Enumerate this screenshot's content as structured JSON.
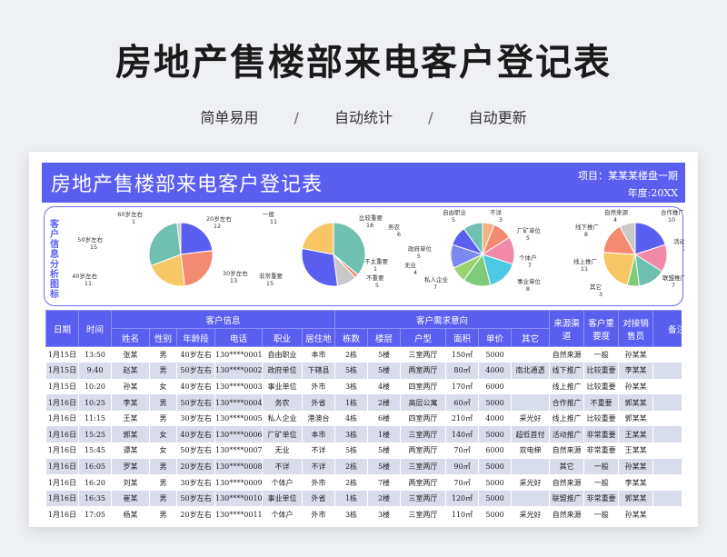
{
  "page": {
    "title": "房地产售楼部来电客户登记表",
    "features": [
      "简单易用",
      "自动统计",
      "自动更新"
    ],
    "separator": "/"
  },
  "sheet": {
    "title": "房地产售楼部来电客户登记表",
    "project": "项目：某某某楼盘一期",
    "year": "年度:20XX",
    "analysis_label": "客户信息分析图标"
  },
  "colors": {
    "accent": "#5b5ff0",
    "row_alt": "#d9dceb"
  },
  "chart_data": [
    {
      "type": "pie",
      "title": "",
      "slices": [
        {
          "label": "20岁左右",
          "value": 12,
          "color": "#5b5ff0"
        },
        {
          "label": "30岁左右",
          "value": 13,
          "color": "#f48a72"
        },
        {
          "label": "40岁左右",
          "value": 11,
          "color": "#f8c765"
        },
        {
          "label": "50岁左右",
          "value": 15,
          "color": "#6fc0b0"
        },
        {
          "label": "60岁左右",
          "value": 1,
          "color": "#c8c8c8"
        }
      ]
    },
    {
      "type": "pie",
      "title": "",
      "slices": [
        {
          "label": "比较重要",
          "value": 18,
          "color": "#6fc0b0"
        },
        {
          "label": "不太重要",
          "value": 1,
          "color": "#f48a72"
        },
        {
          "label": "不重要",
          "value": 5,
          "color": "#c8c8c8"
        },
        {
          "label": "非常重要",
          "value": 15,
          "color": "#5b5ff0"
        },
        {
          "label": "一般",
          "value": 11,
          "color": "#f8c765"
        }
      ]
    },
    {
      "type": "pie",
      "title": "",
      "slices": [
        {
          "label": "不详",
          "value": 3,
          "color": "#f4b183"
        },
        {
          "label": "厂矿单位",
          "value": 5,
          "color": "#f48a72"
        },
        {
          "label": "个体户",
          "value": 7,
          "color": "#f08aa8"
        },
        {
          "label": "事业单位",
          "value": 8,
          "color": "#4dc9e6"
        },
        {
          "label": "私人企业",
          "value": 7,
          "color": "#7ecb78"
        },
        {
          "label": "无业",
          "value": 4,
          "color": "#9bd36e"
        },
        {
          "label": "务农",
          "value": 6,
          "color": "#7b8af0"
        },
        {
          "label": "政府单位",
          "value": 5,
          "color": "#5b5ff0"
        },
        {
          "label": "自由职业",
          "value": 5,
          "color": "#6fc0b0"
        }
      ]
    },
    {
      "type": "pie",
      "title": "",
      "slices": [
        {
          "label": "合作推广",
          "value": 10,
          "color": "#5b5ff0"
        },
        {
          "label": "活动推广",
          "value": 7,
          "color": "#f08aa8"
        },
        {
          "label": "联盟推广",
          "value": 7,
          "color": "#6fc0b0"
        },
        {
          "label": "其它",
          "value": 3,
          "color": "#7ecb78"
        },
        {
          "label": "线上推广",
          "value": 11,
          "color": "#f8c765"
        },
        {
          "label": "线下推广",
          "value": 8,
          "color": "#f48a72"
        },
        {
          "label": "自然来源",
          "value": 4,
          "color": "#c8c8c8"
        }
      ]
    }
  ],
  "table": {
    "top_headers": [
      "日期",
      "时间",
      "客户信息",
      "客户需求意向",
      "来源渠道",
      "客户重要度",
      "对接销售员",
      "备注"
    ],
    "sub_headers": [
      "姓名",
      "性别",
      "年龄段",
      "电话",
      "职业",
      "居住地",
      "栋数",
      "楼层",
      "户型",
      "面积",
      "单价",
      "其它"
    ],
    "rows": [
      [
        "1月15日",
        "13:50",
        "张某",
        "男",
        "40岁左右",
        "130****0001",
        "自由职业",
        "本市",
        "2栋",
        "5楼",
        "三室两厅",
        "150㎡",
        "5000",
        "",
        "自然来源",
        "一般",
        "孙某某",
        ""
      ],
      [
        "1月15日",
        "9:40",
        "赵某",
        "男",
        "50岁左右",
        "130****0002",
        "政府单位",
        "下辖县",
        "5栋",
        "5楼",
        "两室两厅",
        "80㎡",
        "4000",
        "南北通透",
        "线下推广",
        "比较重要",
        "李某某",
        ""
      ],
      [
        "1月15日",
        "10:20",
        "孙某",
        "女",
        "40岁左右",
        "130****0003",
        "事业单位",
        "外市",
        "3栋",
        "4楼",
        "四室两厅",
        "170㎡",
        "6000",
        "",
        "线上推广",
        "比较重要",
        "孙某某",
        ""
      ],
      [
        "1月16日",
        "10:25",
        "李某",
        "男",
        "50岁左右",
        "130****0004",
        "务农",
        "外省",
        "1栋",
        "2楼",
        "高层公寓",
        "60㎡",
        "5000",
        "",
        "合作推广",
        "不重要",
        "郭某某",
        ""
      ],
      [
        "1月16日",
        "11:15",
        "王某",
        "男",
        "30岁左右",
        "130****0005",
        "私人企业",
        "港澳台",
        "4栋",
        "6楼",
        "四室两厅",
        "210㎡",
        "4000",
        "采光好",
        "线上推广",
        "比较重要",
        "郭某某",
        ""
      ],
      [
        "1月16日",
        "15:25",
        "郭某",
        "女",
        "40岁左右",
        "130****0006",
        "厂矿单位",
        "本市",
        "3栋",
        "1楼",
        "三室两厅",
        "140㎡",
        "5000",
        "超低首付",
        "活动推广",
        "非常重要",
        "王某某",
        ""
      ],
      [
        "1月16日",
        "15:45",
        "谭某",
        "女",
        "50岁左右",
        "130****0007",
        "无业",
        "不详",
        "5栋",
        "5楼",
        "两室两厅",
        "70㎡",
        "6000",
        "双电梯",
        "自然来源",
        "非常重要",
        "王某某",
        ""
      ],
      [
        "1月16日",
        "16:05",
        "罗某",
        "男",
        "20岁左右",
        "130****0008",
        "不详",
        "不详",
        "2栋",
        "5楼",
        "三室两厅",
        "90㎡",
        "5000",
        "",
        "其它",
        "一般",
        "孙某某",
        ""
      ],
      [
        "1月16日",
        "16:20",
        "刘某",
        "男",
        "30岁左右",
        "130****0009",
        "个体户",
        "外市",
        "2栋",
        "7楼",
        "两室两厅",
        "70㎡",
        "5000",
        "采光好",
        "自然来源",
        "一般",
        "李某某",
        ""
      ],
      [
        "1月16日",
        "16:35",
        "崔某",
        "男",
        "50岁左右",
        "130****0010",
        "事业单位",
        "外省",
        "1栋",
        "2楼",
        "三室两厅",
        "120㎡",
        "5000",
        "",
        "联盟推广",
        "非常重要",
        "郭某某",
        ""
      ],
      [
        "1月16日",
        "17:05",
        "杨某",
        "男",
        "20岁左右",
        "130****0011",
        "个体户",
        "外市",
        "3栋",
        "3楼",
        "三室两厅",
        "110㎡",
        "5000",
        "采光好",
        "自然来源",
        "一般",
        "孙某某",
        ""
      ]
    ]
  }
}
